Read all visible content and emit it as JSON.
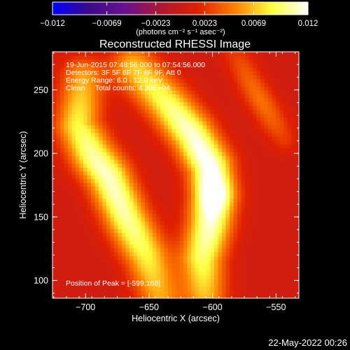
{
  "chart_data": {
    "type": "heatmap",
    "title": "Reconstructed RHESSI Image",
    "xlabel": "Heliocentric X (arcsec)",
    "ylabel": "Heliocentric Y (arcsec)",
    "xlim": [
      -726,
      -532
    ],
    "ylim": [
      86,
      280
    ],
    "x_ticks": [
      -700,
      -650,
      -600,
      -550
    ],
    "x_tick_labels": [
      "−700",
      "−650",
      "−600",
      "−550"
    ],
    "y_ticks": [
      100,
      150,
      200,
      250
    ],
    "y_tick_labels": [
      "100",
      "150",
      "200",
      "250"
    ],
    "colorbar": {
      "range": [
        -0.012,
        0.012
      ],
      "ticks": [
        -0.012,
        -0.0069,
        -0.0023,
        0.0023,
        0.0069,
        0.012
      ],
      "tick_labels": [
        "−0.012",
        "−0.0069",
        "−0.0023",
        "0.0023",
        "0.0069",
        "0.012"
      ],
      "unit_label": "(photons cm⁻² s⁻¹ asec⁻²)",
      "colormap": [
        "#0000ff",
        "#3a0a8a",
        "#6a1090",
        "#b01830",
        "#e02000",
        "#ff8000",
        "#ffff40",
        "#ffffff"
      ]
    },
    "annotations": [
      "19-Jun-2015 07:48:56.000 to 07:54:56.000",
      "Detectors: 3F 5F 6F 7F 8F 9F, Att 0",
      "Energy Range: 6.0 - 12.0 keV",
      "Clean     Total counts: 4.30E+04"
    ],
    "peak_label": "Position of Peak = [-599,168]",
    "peak": {
      "x": -599,
      "y": 168
    },
    "features": [
      {
        "name": "left-ridge",
        "points": [
          [
            -702,
            258
          ],
          [
            -706,
            222
          ],
          [
            -695,
            200
          ],
          [
            -682,
            182
          ],
          [
            -668,
            150
          ],
          [
            -652,
            120
          ],
          [
            -642,
            90
          ]
        ],
        "width": 12,
        "peak": 0.0105
      },
      {
        "name": "central-ridge",
        "points": [
          [
            -662,
            268
          ],
          [
            -636,
            240
          ],
          [
            -616,
            215
          ],
          [
            -602,
            190
          ],
          [
            -599,
            168
          ],
          [
            -602,
            145
          ],
          [
            -608,
            118
          ],
          [
            -606,
            92
          ]
        ],
        "width": 12,
        "peak": 0.012
      },
      {
        "name": "upper-right-ridge",
        "points": [
          [
            -582,
            278
          ],
          [
            -568,
            252
          ],
          [
            -556,
            232
          ],
          [
            -544,
            212
          ]
        ],
        "width": 8,
        "peak": 0.004
      }
    ],
    "background": 0.0005,
    "grid": false
  },
  "footer": {
    "date_stamp": "22-May-2022 00:26"
  }
}
